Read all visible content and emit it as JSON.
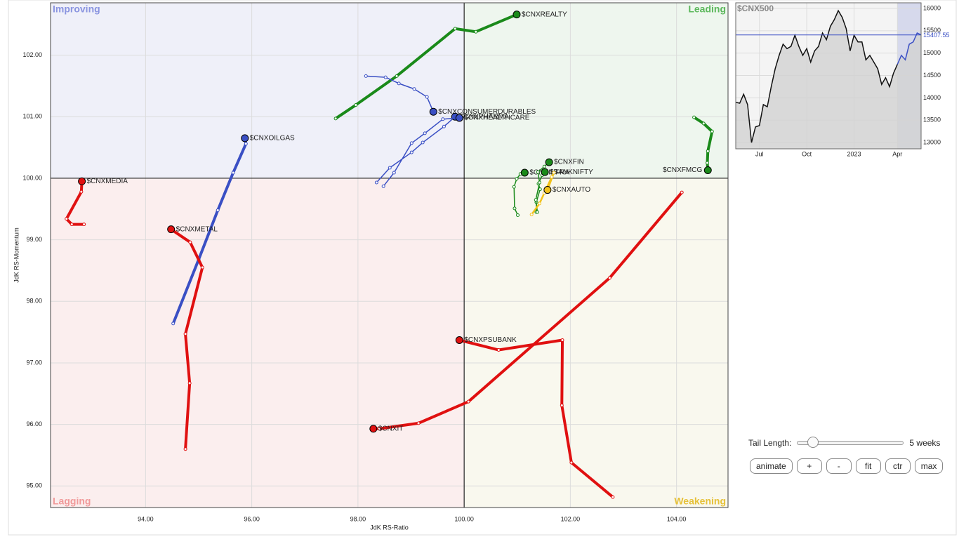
{
  "chart_data": [
    {
      "type": "rrg",
      "x_label": "JdK RS-Ratio",
      "y_label": "JdK RS-Momentum",
      "quadrants": [
        {
          "name": "Improving",
          "color": "#8a94e0",
          "fill": "#eff0f9"
        },
        {
          "name": "Leading",
          "color": "#5cb85c",
          "fill": "#eef6ee"
        },
        {
          "name": "Lagging",
          "color": "#f09a9a",
          "fill": "#fbeeee"
        },
        {
          "name": "Weakening",
          "color": "#e6c13a",
          "fill": "#f9f8ee"
        }
      ],
      "center": {
        "x": 100,
        "y": 100
      },
      "xlim": [
        92.21,
        104.97
      ],
      "ylim": [
        94.65,
        102.85
      ],
      "xticks": [
        {
          "value": 94,
          "label": "94.00"
        },
        {
          "value": 96,
          "label": "96.00"
        },
        {
          "value": 98,
          "label": "98.00"
        },
        {
          "value": 100,
          "label": "100.00"
        },
        {
          "value": 102,
          "label": "102.00"
        },
        {
          "value": 104,
          "label": "104.00"
        }
      ],
      "yticks": [
        {
          "value": 95,
          "label": "95.00"
        },
        {
          "value": 96,
          "label": "96.00"
        },
        {
          "value": 97,
          "label": "97.00"
        },
        {
          "value": 98,
          "label": "98.00"
        },
        {
          "value": 99,
          "label": "99.00"
        },
        {
          "value": 100,
          "label": "100.00"
        },
        {
          "value": 101,
          "label": "101.00"
        },
        {
          "value": 102,
          "label": "102.00"
        }
      ],
      "grid": true,
      "series": [
        {
          "name": "$CNXREALTY",
          "color": "#1a8a1a",
          "width": 4,
          "x": [
            97.58,
            97.96,
            98.73,
            99.83,
            100.22,
            100.99
          ],
          "values": [
            100.97,
            101.19,
            101.66,
            102.43,
            102.38,
            102.66
          ]
        },
        {
          "name": "$CNXCONSUMERDURABLES",
          "color": "#3a4fc4",
          "width": 1.5,
          "x": [
            98.15,
            98.52,
            98.77,
            99.06,
            99.3,
            99.42
          ],
          "values": [
            101.66,
            101.64,
            101.54,
            101.45,
            101.32,
            101.08
          ]
        },
        {
          "name": "$CNXPHARMA",
          "color": "#3a4fc4",
          "width": 1.5,
          "x": [
            98.35,
            98.6,
            99.01,
            99.22,
            99.62,
            99.83
          ],
          "values": [
            99.93,
            100.17,
            100.42,
            100.58,
            100.84,
            101.0
          ]
        },
        {
          "name": "$CNXHEALTHCARE",
          "color": "#3a4fc4",
          "width": 1.5,
          "x": [
            98.48,
            98.68,
            99.01,
            99.26,
            99.6,
            99.91
          ],
          "values": [
            99.87,
            100.09,
            100.57,
            100.73,
            100.96,
            100.98
          ]
        },
        {
          "name": "$CNXOILGAS",
          "color": "#3a4fc4",
          "width": 4,
          "x": [
            94.52,
            95.0,
            95.36,
            95.65,
            95.89,
            95.87
          ],
          "values": [
            97.64,
            98.68,
            99.48,
            100.09,
            100.56,
            100.65
          ]
        },
        {
          "name": "$CNXMEDIA",
          "color": "#e01010",
          "width": 4,
          "x": [
            92.84,
            92.61,
            92.51,
            92.79,
            92.8
          ],
          "values": [
            99.25,
            99.25,
            99.34,
            99.78,
            99.95
          ]
        },
        {
          "name": "$CNXMETAL",
          "color": "#e01010",
          "width": 4,
          "x": [
            94.75,
            94.83,
            94.75,
            95.07,
            94.84,
            94.48
          ],
          "values": [
            95.6,
            96.67,
            97.47,
            98.55,
            98.96,
            99.17
          ]
        },
        {
          "name": "$CNXPSUBANK",
          "color": "#e01010",
          "width": 4,
          "x": [
            102.8,
            102.02,
            101.84,
            101.85,
            100.65,
            99.91
          ],
          "values": [
            94.82,
            95.38,
            96.31,
            97.37,
            97.21,
            97.37
          ]
        },
        {
          "name": "$CNXIT",
          "color": "#e01010",
          "width": 4,
          "x": [
            104.1,
            102.74,
            100.08,
            99.14,
            98.4,
            98.29
          ],
          "values": [
            99.77,
            98.38,
            96.37,
            96.02,
            95.93,
            95.93
          ]
        },
        {
          "name": "$CNXFMCG",
          "color": "#1a8a1a",
          "width": 4,
          "x": [
            104.33,
            104.51,
            104.67,
            104.59,
            104.58,
            104.59
          ],
          "values": [
            100.99,
            100.89,
            100.76,
            100.44,
            100.25,
            100.13
          ]
        },
        {
          "name": "$CNXINFRA",
          "color": "#1a8a1a",
          "width": 1.5,
          "x": [
            101.01,
            100.95,
            100.94,
            100.99,
            101.06,
            101.14
          ],
          "values": [
            99.4,
            99.51,
            99.86,
            99.99,
            100.07,
            100.09
          ]
        },
        {
          "name": "$BANKNIFTY",
          "color": "#1a8a1a",
          "width": 1.5,
          "x": [
            101.36,
            101.36,
            101.43,
            101.4,
            101.47,
            101.52
          ],
          "values": [
            99.45,
            99.61,
            99.82,
            99.91,
            100.05,
            100.1
          ]
        },
        {
          "name": "$CNXFIN",
          "color": "#1a8a1a",
          "width": 1.5,
          "x": [
            101.38,
            101.35,
            101.42,
            101.39,
            101.51,
            101.6
          ],
          "values": [
            99.45,
            99.65,
            99.93,
            100.1,
            100.19,
            100.26
          ]
        },
        {
          "name": "$CNXAUTO",
          "color": "#f2c21b",
          "width": 2.5,
          "x": [
            101.27,
            101.42,
            101.51,
            101.65,
            101.69,
            101.57
          ],
          "values": [
            99.41,
            99.59,
            99.76,
            100.02,
            100.09,
            99.81
          ]
        }
      ]
    },
    {
      "type": "line",
      "title": "$CNX500",
      "color": "#111111",
      "highlight": {
        "from": 41,
        "color": "#3a4fc4"
      },
      "categories": [
        null,
        null,
        null,
        null,
        null,
        null,
        "Jul",
        null,
        null,
        null,
        null,
        null,
        null,
        null,
        null,
        null,
        null,
        null,
        "Oct",
        null,
        null,
        null,
        null,
        null,
        null,
        null,
        null,
        null,
        null,
        null,
        "2023",
        null,
        null,
        null,
        null,
        null,
        null,
        null,
        null,
        null,
        null,
        "Apr",
        null,
        null,
        null,
        null,
        null,
        null
      ],
      "values": [
        13900,
        13880,
        14080,
        13850,
        13000,
        13350,
        13380,
        13850,
        13800,
        14250,
        14650,
        14950,
        15200,
        15100,
        15150,
        15400,
        15150,
        14950,
        15100,
        14800,
        15050,
        15150,
        15450,
        15300,
        15600,
        15750,
        15950,
        15800,
        15550,
        15050,
        15400,
        15250,
        15250,
        14850,
        14950,
        14800,
        14650,
        14300,
        14450,
        14250,
        14550,
        14750,
        14950,
        14850,
        15200,
        15250,
        15450,
        15407.55
      ],
      "ylim": [
        12860,
        16125
      ],
      "yticks": [
        13000,
        13500,
        14000,
        14500,
        15000,
        15500,
        16000
      ],
      "grid": true
    }
  ],
  "controls": {
    "tail_label": "Tail Length:",
    "tail_value": "5 weeks",
    "buttons": [
      "animate",
      "+",
      "-",
      "fit",
      "ctr",
      "max"
    ]
  }
}
